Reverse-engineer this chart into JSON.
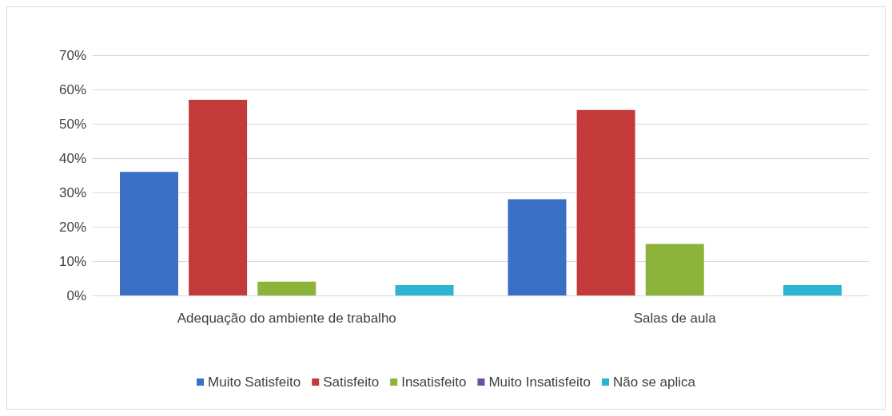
{
  "chart_data": {
    "type": "bar",
    "categories": [
      "Adequação do ambiente de trabalho",
      "Salas de aula"
    ],
    "series": [
      {
        "name": "Muito Satisfeito",
        "color": "#3b6fc4",
        "values": [
          36,
          28
        ]
      },
      {
        "name": "Satisfeito",
        "color": "#c23a3a",
        "values": [
          57,
          54
        ]
      },
      {
        "name": "Insatisfeito",
        "color": "#8db43a",
        "values": [
          4,
          15
        ]
      },
      {
        "name": "Muito Insatisfeito",
        "color": "#6e4f9f",
        "values": [
          0,
          0
        ]
      },
      {
        "name": "Não se aplica",
        "color": "#2bb5d0",
        "values": [
          3,
          3
        ]
      }
    ],
    "ylim": [
      0,
      70
    ],
    "yticks": [
      {
        "value": 0,
        "label": "0%"
      },
      {
        "value": 10,
        "label": "10%"
      },
      {
        "value": 20,
        "label": "20%"
      },
      {
        "value": 30,
        "label": "30%"
      },
      {
        "value": 40,
        "label": "40%"
      },
      {
        "value": 50,
        "label": "50%"
      },
      {
        "value": 60,
        "label": "60%"
      },
      {
        "value": 70,
        "label": "70%"
      }
    ],
    "grid": "y",
    "legend": "bottom"
  }
}
